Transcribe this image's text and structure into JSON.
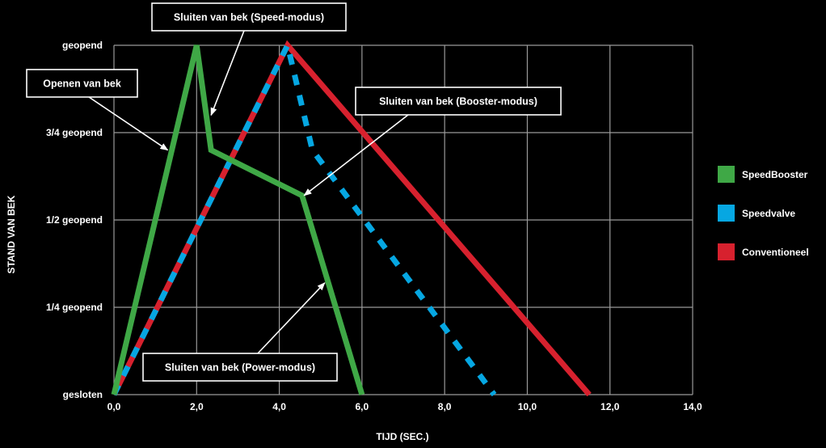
{
  "chart_data": {
    "type": "line",
    "title": "",
    "xlabel": "TIJD (SEC.)",
    "ylabel": "STAND VAN BEK",
    "xlim": [
      0,
      14
    ],
    "ylim": [
      0,
      1
    ],
    "x_ticks": [
      0,
      2,
      4,
      6,
      8,
      10,
      12,
      14
    ],
    "x_tick_labels": [
      "0,0",
      "2,0",
      "4,0",
      "6,0",
      "8,0",
      "10,0",
      "12,0",
      "14,0"
    ],
    "y_ticks": [
      0,
      0.25,
      0.5,
      0.75,
      1
    ],
    "y_tick_labels": [
      "gesloten",
      "1/4 geopend",
      "1/2 geopend",
      "3/4 geopend",
      "geopend"
    ],
    "grid": true,
    "legend_position": "right",
    "series": [
      {
        "name": "Conventioneel",
        "color": "#d7212e",
        "x": [
          0,
          4.2,
          11.5
        ],
        "y": [
          0,
          1,
          0
        ]
      },
      {
        "name": "Speedvalve",
        "color": "#06a7e2",
        "x": [
          0,
          4.2,
          4.8,
          9.2
        ],
        "y": [
          0,
          1,
          0.7,
          0
        ]
      },
      {
        "name": "SpeedBooster",
        "color": "#3fa846",
        "x": [
          0,
          2.0,
          2.35,
          4.55,
          6.0
        ],
        "y": [
          0,
          1,
          0.7,
          0.57,
          0
        ]
      }
    ],
    "annotations": [
      {
        "text": "Sluiten van bek (Speed-modus)",
        "point_x": 2.35,
        "point_y": 0.8
      },
      {
        "text": "Openen van bek",
        "point_x": 1.3,
        "point_y": 0.7
      },
      {
        "text": "Sluiten van bek (Booster-modus)",
        "point_x": 4.6,
        "point_y": 0.57
      },
      {
        "text": "Sluiten van bek (Power-modus)",
        "point_x": 5.1,
        "point_y": 0.32
      }
    ]
  }
}
